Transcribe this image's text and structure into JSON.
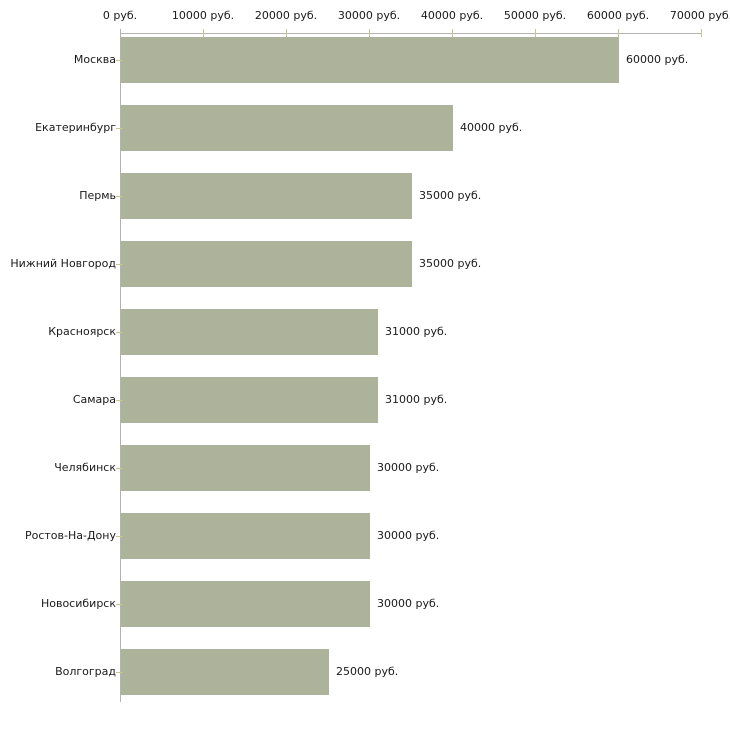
{
  "chart_data": {
    "type": "bar",
    "orientation": "horizontal",
    "title": "",
    "xlabel": "",
    "ylabel": "",
    "unit": "руб.",
    "xlim": [
      0,
      70000
    ],
    "grid": false,
    "legend": null,
    "categories": [
      "Москва",
      "Екатеринбург",
      "Пермь",
      "Нижний Новгород",
      "Красноярск",
      "Самара",
      "Челябинск",
      "Ростов-На-Дону",
      "Новосибирск",
      "Волгоград"
    ],
    "values": [
      60000,
      40000,
      35000,
      35000,
      31000,
      31000,
      30000,
      30000,
      30000,
      25000
    ],
    "value_labels": [
      "60000 руб.",
      "40000 руб.",
      "35000 руб.",
      "35000 руб.",
      "31000 руб.",
      "31000 руб.",
      "30000 руб.",
      "30000 руб.",
      "30000 руб.",
      "25000 руб."
    ],
    "x_tick_values": [
      0,
      10000,
      20000,
      30000,
      40000,
      50000,
      60000,
      70000
    ],
    "x_tick_labels": [
      "0 руб.",
      "10000 руб.",
      "20000 руб.",
      "30000 руб.",
      "40000 руб.",
      "50000 руб.",
      "60000 руб.",
      "70000 руб."
    ],
    "colors": {
      "bar": "#adb39b",
      "axis_line": "#b3b3b3",
      "tick_mark": "#c9c592",
      "text": "#1a1a1a",
      "background": "#ffffff"
    }
  }
}
